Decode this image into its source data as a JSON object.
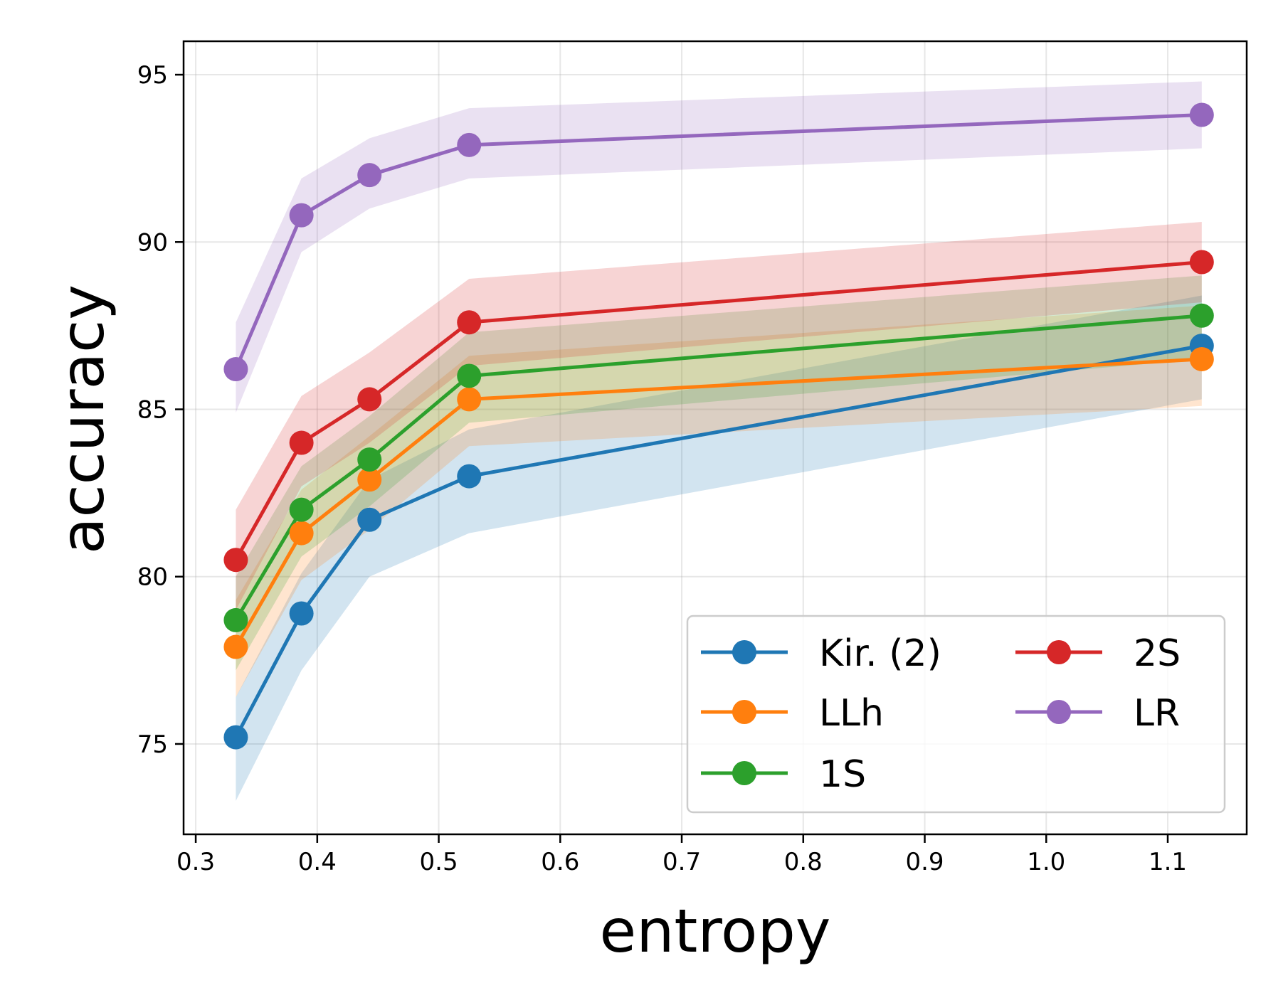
{
  "chart_data": {
    "type": "line",
    "title": "",
    "xlabel": "entropy",
    "ylabel": "accuracy",
    "xlim": [
      0.29,
      1.165
    ],
    "ylim": [
      72.3,
      96.0
    ],
    "xticks": [
      0.3,
      0.4,
      0.5,
      0.6,
      0.7,
      0.8,
      0.9,
      1.0,
      1.1
    ],
    "xtick_labels": [
      "0.3",
      "0.4",
      "0.5",
      "0.6",
      "0.7",
      "0.8",
      "0.9",
      "1.0",
      "1.1"
    ],
    "yticks": [
      75,
      80,
      85,
      90,
      95
    ],
    "ytick_labels": [
      "75",
      "80",
      "85",
      "90",
      "95"
    ],
    "grid": true,
    "legend_position": "lower-right",
    "x": [
      0.333,
      0.387,
      0.443,
      0.525,
      1.128
    ],
    "series": [
      {
        "name": "Kir. (2)",
        "color": "#1f77b4",
        "values": [
          75.2,
          78.9,
          81.7,
          83.0,
          86.9
        ],
        "lower": [
          73.3,
          77.2,
          80.0,
          81.3,
          85.3
        ],
        "upper": [
          76.4,
          80.1,
          82.9,
          84.4,
          88.4
        ]
      },
      {
        "name": "LLh",
        "color": "#ff7f0e",
        "values": [
          77.9,
          81.3,
          82.9,
          85.3,
          86.5
        ],
        "lower": [
          76.4,
          79.9,
          81.4,
          83.9,
          85.1
        ],
        "upper": [
          79.3,
          82.6,
          84.2,
          86.6,
          88.1
        ]
      },
      {
        "name": "1S",
        "color": "#2ca02c",
        "values": [
          78.7,
          82.0,
          83.5,
          86.0,
          87.8
        ],
        "lower": [
          77.2,
          80.6,
          82.1,
          84.6,
          86.5
        ],
        "upper": [
          80.0,
          83.3,
          84.8,
          87.3,
          89.0
        ]
      },
      {
        "name": "2S",
        "color": "#d62728",
        "values": [
          80.5,
          84.0,
          85.3,
          87.6,
          89.4
        ],
        "lower": [
          79.0,
          82.7,
          84.0,
          86.3,
          88.2
        ],
        "upper": [
          82.0,
          85.4,
          86.7,
          88.9,
          90.6
        ]
      },
      {
        "name": "LR",
        "color": "#9467bd",
        "values": [
          86.2,
          90.8,
          92.0,
          92.9,
          93.8
        ],
        "lower": [
          84.9,
          89.7,
          91.0,
          91.9,
          92.8
        ],
        "upper": [
          87.6,
          91.9,
          93.1,
          94.0,
          94.8
        ]
      }
    ]
  }
}
